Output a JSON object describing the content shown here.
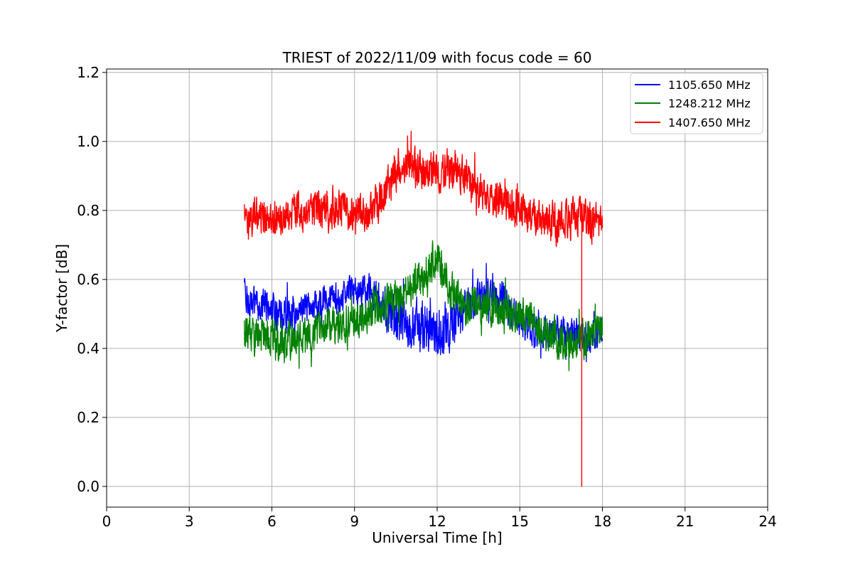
{
  "chart_data": {
    "type": "line",
    "title": "TRIEST of 2022/11/09 with focus code = 60",
    "xlabel": "Universal Time [h]",
    "ylabel": "Y-factor [dB]",
    "xlim": [
      0,
      24
    ],
    "ylim": [
      -0.06,
      1.21
    ],
    "xticks": [
      0,
      3,
      6,
      9,
      12,
      15,
      18,
      21,
      24
    ],
    "xtick_labels": [
      "0",
      "3",
      "6",
      "9",
      "12",
      "15",
      "18",
      "21",
      "24"
    ],
    "yticks": [
      0.0,
      0.2,
      0.4,
      0.6,
      0.8,
      1.0,
      1.2
    ],
    "ytick_labels": [
      "0.0",
      "0.2",
      "0.4",
      "0.6",
      "0.8",
      "1.0",
      "1.2"
    ],
    "grid": true,
    "legend_position": "top-right",
    "series": [
      {
        "name": "1105.650 MHz",
        "color": "#0000ff",
        "x": [
          5.0,
          5.5,
          6.0,
          6.5,
          7.0,
          7.5,
          8.0,
          8.5,
          9.0,
          9.5,
          10.0,
          10.5,
          11.0,
          11.5,
          12.0,
          12.5,
          13.0,
          13.5,
          14.0,
          14.5,
          15.0,
          15.5,
          16.0,
          16.5,
          17.0,
          17.5,
          18.0
        ],
        "y": [
          0.55,
          0.53,
          0.51,
          0.5,
          0.52,
          0.52,
          0.54,
          0.55,
          0.57,
          0.57,
          0.52,
          0.48,
          0.46,
          0.46,
          0.45,
          0.48,
          0.52,
          0.55,
          0.56,
          0.53,
          0.48,
          0.45,
          0.44,
          0.45,
          0.44,
          0.43,
          0.45
        ],
        "spread": [
          0.06,
          0.06,
          0.07,
          0.07,
          0.06,
          0.06,
          0.06,
          0.06,
          0.06,
          0.06,
          0.08,
          0.09,
          0.1,
          0.1,
          0.11,
          0.1,
          0.08,
          0.07,
          0.07,
          0.07,
          0.07,
          0.06,
          0.06,
          0.06,
          0.06,
          0.07,
          0.06
        ]
      },
      {
        "name": "1248.212 MHz",
        "color": "#008000",
        "x": [
          5.0,
          5.5,
          6.0,
          6.5,
          7.0,
          7.5,
          8.0,
          8.5,
          9.0,
          9.5,
          10.0,
          10.5,
          11.0,
          11.5,
          12.0,
          12.5,
          13.0,
          13.5,
          14.0,
          14.5,
          15.0,
          15.5,
          16.0,
          16.5,
          17.0,
          17.5,
          18.0
        ],
        "y": [
          0.45,
          0.44,
          0.42,
          0.41,
          0.43,
          0.44,
          0.46,
          0.47,
          0.48,
          0.5,
          0.52,
          0.55,
          0.58,
          0.62,
          0.66,
          0.58,
          0.52,
          0.52,
          0.52,
          0.51,
          0.5,
          0.48,
          0.44,
          0.42,
          0.42,
          0.43,
          0.45
        ],
        "spread": [
          0.07,
          0.07,
          0.08,
          0.08,
          0.07,
          0.07,
          0.07,
          0.07,
          0.07,
          0.07,
          0.07,
          0.07,
          0.08,
          0.08,
          0.09,
          0.08,
          0.07,
          0.07,
          0.07,
          0.07,
          0.07,
          0.07,
          0.08,
          0.08,
          0.07,
          0.07,
          0.07
        ]
      },
      {
        "name": "1407.650 MHz",
        "color": "#ff0000",
        "x": [
          5.0,
          5.5,
          6.0,
          6.5,
          7.0,
          7.5,
          8.0,
          8.5,
          9.0,
          9.5,
          10.0,
          10.5,
          11.0,
          11.5,
          12.0,
          12.5,
          13.0,
          13.5,
          14.0,
          14.5,
          15.0,
          15.5,
          16.0,
          16.5,
          17.0,
          17.5,
          18.0
        ],
        "y": [
          0.78,
          0.78,
          0.77,
          0.79,
          0.8,
          0.8,
          0.8,
          0.81,
          0.8,
          0.79,
          0.84,
          0.92,
          0.93,
          0.92,
          0.92,
          0.92,
          0.9,
          0.86,
          0.84,
          0.82,
          0.8,
          0.78,
          0.76,
          0.76,
          0.78,
          0.77,
          0.78
        ],
        "spread": [
          0.07,
          0.07,
          0.07,
          0.07,
          0.07,
          0.07,
          0.08,
          0.08,
          0.07,
          0.07,
          0.08,
          0.08,
          0.08,
          0.08,
          0.08,
          0.08,
          0.07,
          0.07,
          0.07,
          0.07,
          0.07,
          0.07,
          0.08,
          0.08,
          0.08,
          0.08,
          0.08
        ],
        "dropout": {
          "x": 17.25,
          "y": 0.0
        }
      }
    ]
  }
}
